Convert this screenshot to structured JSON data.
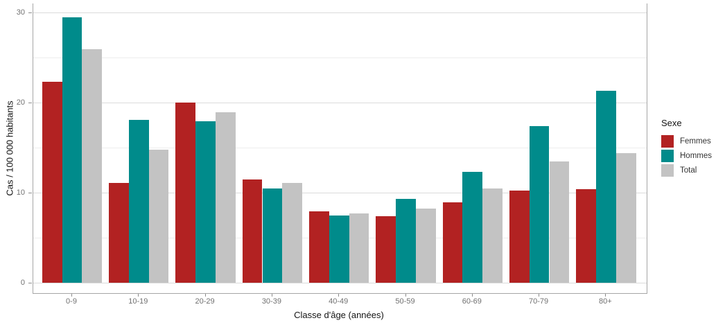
{
  "chart_data": {
    "type": "bar",
    "title": "",
    "xlabel": "Classe d'âge (années)",
    "ylabel": "Cas / 100 000 habitants",
    "legend_title": "Sexe",
    "legend_position": "right",
    "grid": true,
    "categories": [
      "0-9",
      "10-19",
      "20-29",
      "30-39",
      "40-49",
      "50-59",
      "60-69",
      "70-79",
      "80+"
    ],
    "series": [
      {
        "name": "Femmes",
        "color": "#B22222",
        "values": [
          22.3,
          11.1,
          20.0,
          11.5,
          7.9,
          7.4,
          8.9,
          10.2,
          10.4
        ]
      },
      {
        "name": "Hommes",
        "color": "#008B8B",
        "values": [
          29.5,
          18.1,
          17.9,
          10.5,
          7.5,
          9.3,
          12.3,
          17.4,
          21.3
        ]
      },
      {
        "name": "Total",
        "color": "#C3C3C3",
        "values": [
          25.9,
          14.8,
          18.9,
          11.1,
          7.7,
          8.2,
          10.5,
          13.5,
          14.4
        ]
      }
    ],
    "ylim": [
      0,
      30
    ],
    "yticks": [
      0,
      10,
      20,
      30
    ],
    "yticks_minor": [
      5,
      15,
      25
    ]
  }
}
